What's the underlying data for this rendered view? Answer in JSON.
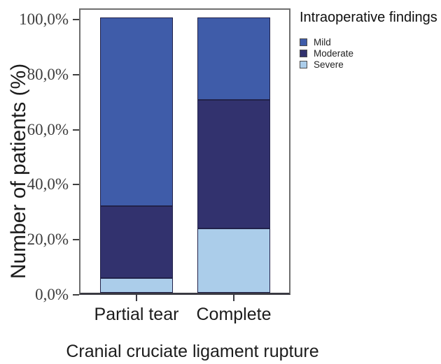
{
  "chart_data": {
    "type": "bar",
    "stacked": true,
    "orientation": "vertical",
    "legend_title": "Intraoperative findings",
    "legend_position": "top-right-outside",
    "xlabel": "Cranial cruciate ligament rupture",
    "ylabel": "Number of patients (%)",
    "categories": [
      "Partial tear",
      "Complete"
    ],
    "series": [
      {
        "name": "Mild",
        "color": "#3F5CA9",
        "values": [
          68.4,
          30.0
        ]
      },
      {
        "name": "Moderate",
        "color": "#32326E",
        "values": [
          26.3,
          46.7
        ]
      },
      {
        "name": "Severe",
        "color": "#ABCDEA",
        "values": [
          5.3,
          23.3
        ]
      }
    ],
    "stack_order_bottom_to_top": [
      "Severe",
      "Moderate",
      "Mild"
    ],
    "ylim": [
      0,
      100
    ],
    "yticklabels": [
      "0,0%",
      "20,0%",
      "40,0%",
      "60,0%",
      "80,0%",
      "100,0%"
    ],
    "value_format": "percent-comma-decimal",
    "grid": "off",
    "colors": {
      "segment_outline": "#22224A",
      "plot_frame": "#6F6F6F",
      "axis_line": "#3A3A42",
      "tick_text": "#3D3D3D",
      "label_text": "#1C1C1C"
    }
  }
}
